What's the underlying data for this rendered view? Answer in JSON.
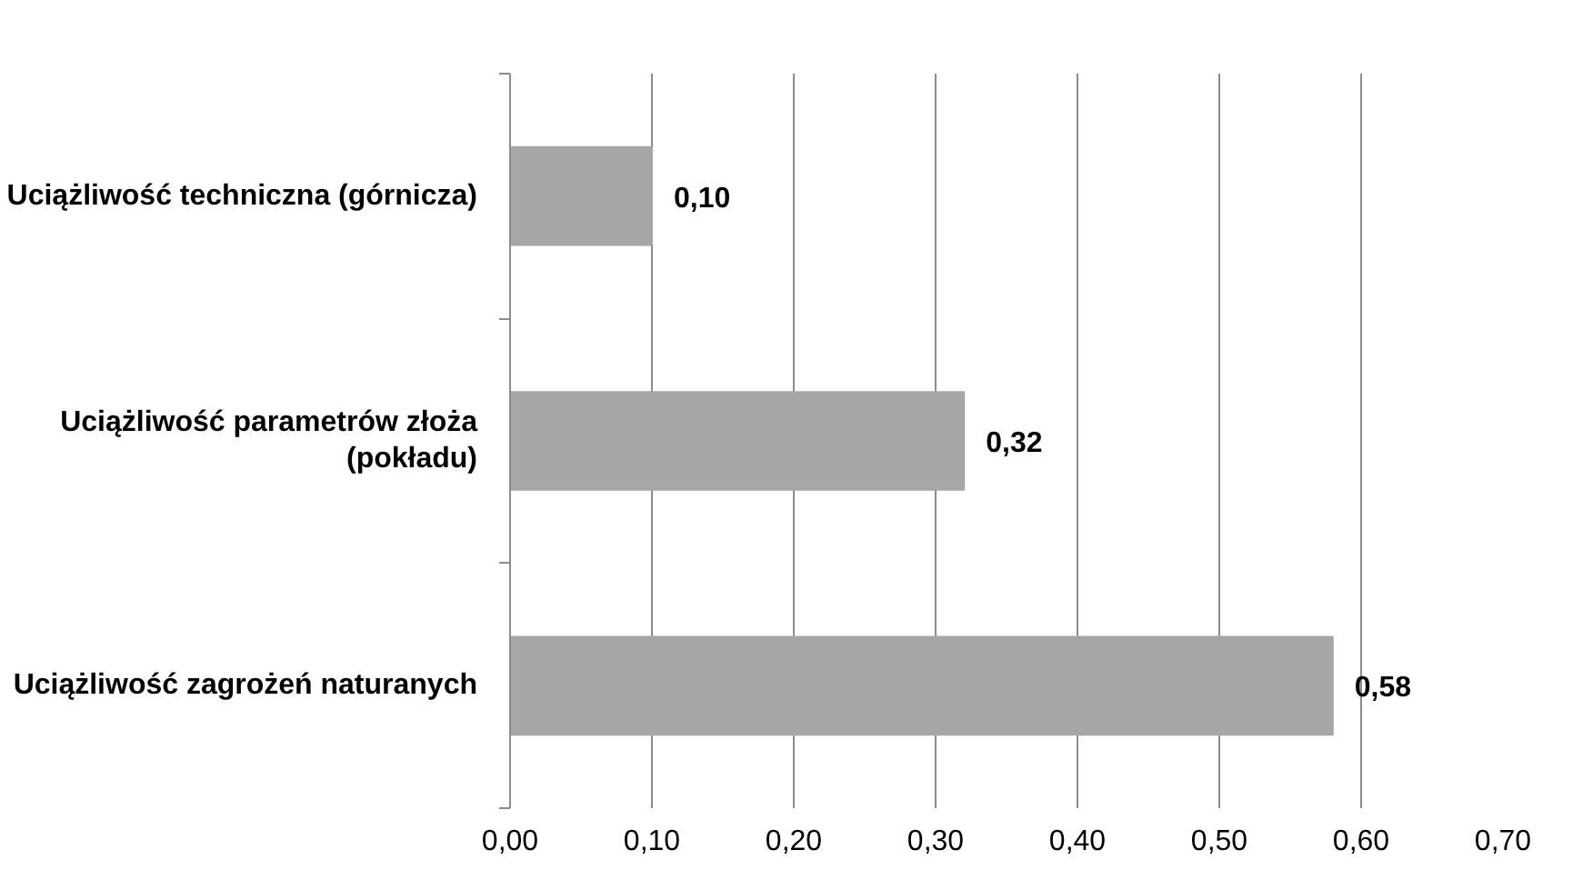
{
  "chart_data": {
    "type": "bar",
    "orientation": "horizontal",
    "categories": [
      "Uciążliwość techniczna (górnicza)",
      "Uciążliwość parametrów złoża (pokładu)",
      "Uciążliwość zagrożeń naturanych"
    ],
    "values": [
      0.1,
      0.32,
      0.58
    ],
    "value_labels": [
      "0,10",
      "0,32",
      "0,58"
    ],
    "color": "#a6a6a6",
    "xlim": [
      0,
      0.7
    ],
    "xticks": [
      {
        "value": 0,
        "label": "0,00"
      },
      {
        "value": 0.1,
        "label": "0,10"
      },
      {
        "value": 0.2,
        "label": "0,20"
      },
      {
        "value": 0.3,
        "label": "0,30"
      },
      {
        "value": 0.4,
        "label": "0,40"
      },
      {
        "value": 0.5,
        "label": "0,50"
      },
      {
        "value": 0.6,
        "label": "0,60"
      },
      {
        "value": 0.7,
        "label": "0,70"
      }
    ],
    "grid": "x"
  }
}
